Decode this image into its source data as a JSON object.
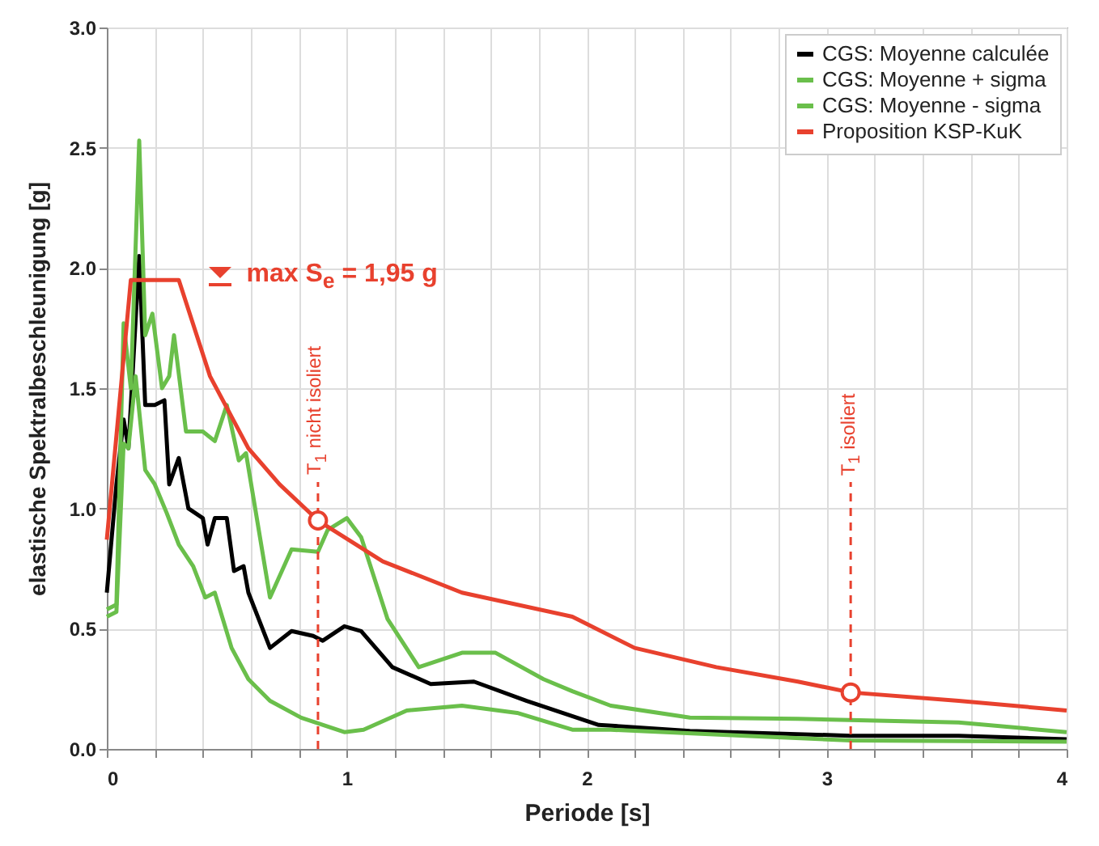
{
  "chart_data": {
    "type": "line",
    "xlabel": "Periode [s]",
    "ylabel": "elastische Spektralbeschleunigung [g]",
    "xlim": [
      0,
      4
    ],
    "ylim": [
      0,
      3
    ],
    "xticks": [
      0,
      {
        "value": 0.2,
        "label": null
      },
      {
        "value": 0.4,
        "label": null
      },
      {
        "value": 0.6,
        "label": null
      },
      {
        "value": 0.8,
        "label": null
      },
      1,
      {
        "value": 1.2,
        "label": null
      },
      {
        "value": 1.4,
        "label": null
      },
      {
        "value": 1.6,
        "label": null
      },
      {
        "value": 1.8,
        "label": null
      },
      2,
      {
        "value": 2.2,
        "label": null
      },
      {
        "value": 2.4,
        "label": null
      },
      {
        "value": 2.6,
        "label": null
      },
      {
        "value": 2.8,
        "label": null
      },
      3,
      {
        "value": 3.2,
        "label": null
      },
      {
        "value": 3.4,
        "label": null
      },
      {
        "value": 3.6,
        "label": null
      },
      {
        "value": 3.8,
        "label": null
      },
      4
    ],
    "yticks": [
      {
        "value": 0,
        "label": "0.0"
      },
      {
        "value": 0.5,
        "label": "0.5"
      },
      {
        "value": 1,
        "label": "1.0"
      },
      {
        "value": 1.5,
        "label": "1.5"
      },
      {
        "value": 2,
        "label": "2.0"
      },
      {
        "value": 2.5,
        "label": "2.5"
      },
      {
        "value": 3,
        "label": "3.0"
      }
    ],
    "grid": true,
    "legend": "top right",
    "series": [
      {
        "name": "CGS: Moyenne calculée",
        "color": "#000000",
        "x": [
          0,
          0.04,
          0.07,
          0.09,
          0.135,
          0.16,
          0.2,
          0.24,
          0.26,
          0.3,
          0.34,
          0.4,
          0.42,
          0.45,
          0.5,
          0.53,
          0.57,
          0.59,
          0.68,
          0.77,
          0.86,
          0.9,
          0.99,
          1.06,
          1.19,
          1.35,
          1.53,
          1.75,
          2.05,
          2.43,
          3.1,
          3.55,
          4.0
        ],
        "values": [
          0.65,
          1.1,
          1.37,
          1.25,
          2.05,
          1.43,
          1.43,
          1.45,
          1.1,
          1.21,
          1.0,
          0.96,
          0.85,
          0.96,
          0.96,
          0.74,
          0.76,
          0.65,
          0.42,
          0.49,
          0.47,
          0.45,
          0.51,
          0.49,
          0.34,
          0.27,
          0.28,
          0.2,
          0.1,
          0.075,
          0.055,
          0.055,
          0.04
        ]
      },
      {
        "name": "CGS: Moyenne + sigma",
        "color": "#6abf4b",
        "x": [
          0,
          0.04,
          0.07,
          0.1,
          0.135,
          0.16,
          0.19,
          0.23,
          0.26,
          0.28,
          0.33,
          0.4,
          0.45,
          0.5,
          0.55,
          0.58,
          0.68,
          0.77,
          0.88,
          0.92,
          1.0,
          1.06,
          1.17,
          1.3,
          1.48,
          1.62,
          1.82,
          1.94,
          2.1,
          2.43,
          2.88,
          3.55,
          4.0
        ],
        "values": [
          0.58,
          0.6,
          1.77,
          1.5,
          2.53,
          1.72,
          1.81,
          1.5,
          1.55,
          1.72,
          1.32,
          1.32,
          1.28,
          1.43,
          1.2,
          1.23,
          0.63,
          0.83,
          0.82,
          0.91,
          0.96,
          0.88,
          0.54,
          0.34,
          0.4,
          0.4,
          0.29,
          0.24,
          0.18,
          0.13,
          0.125,
          0.11,
          0.07
        ]
      },
      {
        "name": "CGS: Moyenne - sigma",
        "color": "#6abf4b",
        "x": [
          0,
          0.04,
          0.07,
          0.09,
          0.12,
          0.16,
          0.2,
          0.25,
          0.3,
          0.36,
          0.41,
          0.45,
          0.52,
          0.59,
          0.68,
          0.81,
          0.99,
          1.07,
          1.25,
          1.48,
          1.71,
          1.94,
          2.1,
          2.66,
          3.1,
          4.0
        ],
        "values": [
          0.55,
          0.57,
          1.27,
          1.25,
          1.55,
          1.16,
          1.1,
          0.98,
          0.85,
          0.76,
          0.63,
          0.65,
          0.42,
          0.29,
          0.2,
          0.13,
          0.07,
          0.08,
          0.16,
          0.18,
          0.15,
          0.08,
          0.08,
          0.055,
          0.035,
          0.03
        ]
      },
      {
        "name": "Proposition KSP-KuK",
        "color": "#e8412e",
        "x": [
          0,
          0.1,
          0.3,
          0.43,
          0.59,
          0.72,
          0.88,
          1.15,
          1.48,
          1.94,
          2.2,
          2.54,
          2.88,
          3.1,
          3.55,
          4.0
        ],
        "values": [
          0.87,
          1.95,
          1.95,
          1.55,
          1.25,
          1.1,
          0.95,
          0.78,
          0.65,
          0.55,
          0.42,
          0.34,
          0.28,
          0.235,
          0.2,
          0.16
        ]
      },
      {
        "type": "scatter",
        "marker": "circle",
        "color": "#e8412e",
        "x": [
          0.88,
          3.1
        ],
        "values": [
          0.95,
          0.235
        ]
      }
    ],
    "ref_lines": [
      {
        "axis": "x",
        "value": 0.88,
        "label": "T$_{1}$ nicht isoliert",
        "color": "#e8412e",
        "line_style": "dashed"
      },
      {
        "axis": "x",
        "value": 3.1,
        "label": "T$_{1}$ isoliert",
        "color": "#e8412e",
        "line_style": "dashed"
      }
    ],
    "annotations": [
      "max S$_{e}$ = 1,95 g"
    ]
  }
}
